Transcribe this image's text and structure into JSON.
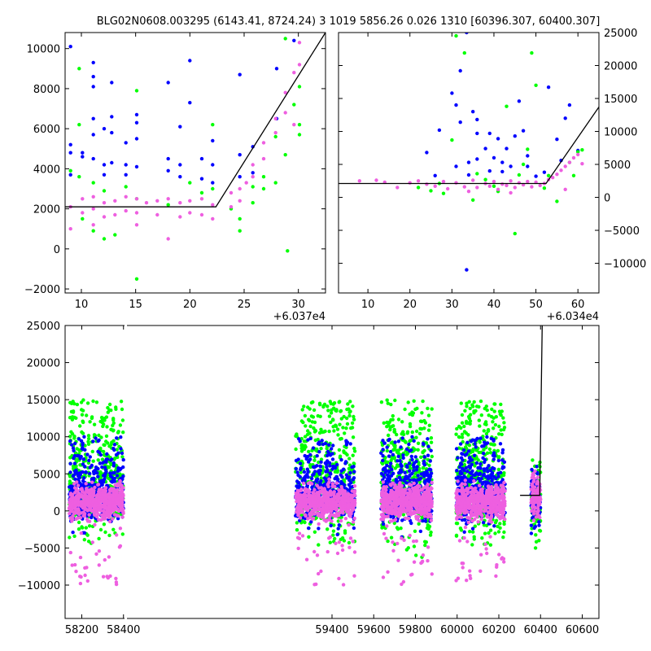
{
  "figure": {
    "title": "BLG02N0608.003295 (6143.41, 8724.24)  3 1019 5856.26 0.026 1310 [60396.307, 60400.307]"
  },
  "colors": {
    "green": "#00ff00",
    "blue": "#0000ff",
    "magenta": "#ee5fe0",
    "model": "#000000"
  },
  "chart_data": [
    {
      "type": "scatter",
      "xlim": [
        8.5,
        32.5
      ],
      "ylim": [
        -2200,
        10800
      ],
      "xticks": [
        10,
        15,
        20,
        25,
        30
      ],
      "yticks": [
        -2000,
        0,
        2000,
        4000,
        6000,
        8000,
        10000
      ],
      "offset_label": "+6.037e4",
      "grid": false,
      "model_line": [
        [
          8.5,
          2100
        ],
        [
          22.4,
          2100
        ],
        [
          32.5,
          10800
        ]
      ],
      "series": [
        {
          "color": "blue",
          "points": [
            [
              9.0,
              10100
            ],
            [
              9.0,
              5200
            ],
            [
              9.0,
              4800
            ],
            [
              9.0,
              3700
            ],
            [
              10.1,
              4800
            ],
            [
              10.1,
              4600
            ],
            [
              11.1,
              9300
            ],
            [
              11.1,
              8600
            ],
            [
              11.1,
              8100
            ],
            [
              11.1,
              6500
            ],
            [
              11.1,
              5700
            ],
            [
              11.1,
              4500
            ],
            [
              12.1,
              6000
            ],
            [
              12.1,
              4200
            ],
            [
              12.1,
              3700
            ],
            [
              12.8,
              8300
            ],
            [
              12.8,
              6600
            ],
            [
              12.8,
              5800
            ],
            [
              12.8,
              4300
            ],
            [
              14.1,
              5300
            ],
            [
              14.1,
              4200
            ],
            [
              14.1,
              3700
            ],
            [
              15.1,
              6700
            ],
            [
              15.1,
              6300
            ],
            [
              15.1,
              5500
            ],
            [
              15.1,
              4100
            ],
            [
              18.0,
              8300
            ],
            [
              18.0,
              4500
            ],
            [
              18.0,
              3900
            ],
            [
              19.1,
              6100
            ],
            [
              19.1,
              4200
            ],
            [
              19.1,
              3600
            ],
            [
              20.0,
              9400
            ],
            [
              20.0,
              7300
            ],
            [
              21.1,
              4500
            ],
            [
              21.1,
              3500
            ],
            [
              22.1,
              5400
            ],
            [
              22.1,
              4200
            ],
            [
              22.1,
              3300
            ],
            [
              24.6,
              8700
            ],
            [
              24.6,
              4700
            ],
            [
              24.6,
              3600
            ],
            [
              25.8,
              5100
            ],
            [
              25.8,
              3800
            ],
            [
              28.0,
              9000
            ],
            [
              28.0,
              6500
            ],
            [
              29.6,
              10400
            ]
          ]
        },
        {
          "color": "green",
          "points": [
            [
              9.0,
              3900
            ],
            [
              9.8,
              9000
            ],
            [
              9.8,
              6200
            ],
            [
              9.8,
              3600
            ],
            [
              10.1,
              1500
            ],
            [
              11.1,
              3300
            ],
            [
              11.1,
              900
            ],
            [
              12.1,
              2900
            ],
            [
              12.1,
              500
            ],
            [
              13.1,
              700
            ],
            [
              14.1,
              3100
            ],
            [
              15.1,
              2500
            ],
            [
              15.1,
              7900
            ],
            [
              15.1,
              -1500
            ],
            [
              18.0,
              2200
            ],
            [
              20.0,
              3300
            ],
            [
              21.1,
              2800
            ],
            [
              22.1,
              6200
            ],
            [
              22.1,
              3000
            ],
            [
              23.8,
              2000
            ],
            [
              24.6,
              1500
            ],
            [
              24.6,
              900
            ],
            [
              25.8,
              3100
            ],
            [
              25.8,
              2300
            ],
            [
              26.8,
              3600
            ],
            [
              26.8,
              3000
            ],
            [
              27.9,
              3300
            ],
            [
              27.9,
              5600
            ],
            [
              28.8,
              10500
            ],
            [
              28.8,
              4700
            ],
            [
              29.0,
              -100
            ],
            [
              29.6,
              10900
            ],
            [
              29.6,
              7200
            ],
            [
              30.1,
              6200
            ],
            [
              30.1,
              8100
            ],
            [
              30.1,
              5700
            ]
          ]
        },
        {
          "color": "magenta",
          "points": [
            [
              9.0,
              1000
            ],
            [
              9.0,
              2100
            ],
            [
              10.1,
              2500
            ],
            [
              10.1,
              1800
            ],
            [
              11.1,
              2600
            ],
            [
              11.1,
              2000
            ],
            [
              11.1,
              1200
            ],
            [
              12.1,
              2300
            ],
            [
              12.1,
              1600
            ],
            [
              13.1,
              2400
            ],
            [
              13.1,
              1700
            ],
            [
              14.1,
              2600
            ],
            [
              14.1,
              1900
            ],
            [
              15.1,
              2500
            ],
            [
              15.1,
              1800
            ],
            [
              15.1,
              1200
            ],
            [
              16.0,
              2300
            ],
            [
              17.0,
              2400
            ],
            [
              17.0,
              1700
            ],
            [
              18.0,
              2500
            ],
            [
              18.0,
              500
            ],
            [
              19.1,
              2300
            ],
            [
              19.1,
              1600
            ],
            [
              20.0,
              2400
            ],
            [
              20.0,
              1800
            ],
            [
              21.1,
              2500
            ],
            [
              21.1,
              1700
            ],
            [
              22.1,
              2200
            ],
            [
              22.1,
              1500
            ],
            [
              23.8,
              2800
            ],
            [
              23.8,
              2100
            ],
            [
              24.6,
              3000
            ],
            [
              24.6,
              2400
            ],
            [
              25.2,
              3300
            ],
            [
              25.8,
              4200
            ],
            [
              25.8,
              3600
            ],
            [
              26.8,
              5300
            ],
            [
              26.8,
              4500
            ],
            [
              27.9,
              6500
            ],
            [
              27.9,
              5800
            ],
            [
              28.8,
              7800
            ],
            [
              28.8,
              6800
            ],
            [
              29.6,
              8800
            ],
            [
              29.6,
              6200
            ],
            [
              30.1,
              9200
            ],
            [
              30.1,
              10300
            ]
          ]
        }
      ]
    },
    {
      "type": "scatter",
      "xlim": [
        3,
        65
      ],
      "ylim": [
        -14500,
        25000
      ],
      "xticks": [
        10,
        20,
        30,
        40,
        50,
        60
      ],
      "yticks": [
        -10000,
        -5000,
        0,
        5000,
        10000,
        15000,
        20000,
        25000
      ],
      "offset_label": "+6.034e4",
      "grid": false,
      "model_line": [
        [
          3,
          2100
        ],
        [
          52.4,
          2100
        ],
        [
          65,
          13700
        ]
      ],
      "series": [
        {
          "color": "blue",
          "points": [
            [
              24,
              6800
            ],
            [
              27,
              10200
            ],
            [
              30,
              15800
            ],
            [
              31,
              14000
            ],
            [
              32,
              19200
            ],
            [
              32,
              11400
            ],
            [
              33.5,
              25000
            ],
            [
              34,
              3400
            ],
            [
              34,
              5300
            ],
            [
              35,
              13000
            ],
            [
              36,
              9700
            ],
            [
              36,
              11800
            ],
            [
              38,
              7400
            ],
            [
              39,
              9700
            ],
            [
              40,
              6000
            ],
            [
              41,
              8900
            ],
            [
              42,
              5300
            ],
            [
              43,
              7400
            ],
            [
              45,
              9300
            ],
            [
              46,
              14600
            ],
            [
              47,
              10100
            ],
            [
              48,
              4700
            ],
            [
              48,
              6300
            ],
            [
              50,
              3200
            ],
            [
              53,
              16700
            ],
            [
              55,
              8800
            ],
            [
              57,
              12000
            ],
            [
              58,
              14000
            ],
            [
              60,
              7100
            ],
            [
              33.5,
              -11000
            ],
            [
              39,
              4000
            ],
            [
              44,
              4700
            ],
            [
              52,
              3800
            ],
            [
              56,
              5600
            ],
            [
              26,
              3300
            ],
            [
              31,
              4700
            ],
            [
              36,
              5800
            ],
            [
              42,
              3900
            ]
          ]
        },
        {
          "color": "green",
          "points": [
            [
              22,
              1500
            ],
            [
              25,
              1000
            ],
            [
              28,
              600
            ],
            [
              30,
              8700
            ],
            [
              31,
              24500
            ],
            [
              33,
              21900
            ],
            [
              35,
              -400
            ],
            [
              36,
              3600
            ],
            [
              38,
              2700
            ],
            [
              40,
              1700
            ],
            [
              43,
              13800
            ],
            [
              45,
              -5500
            ],
            [
              46,
              3400
            ],
            [
              47,
              5000
            ],
            [
              48,
              7300
            ],
            [
              49,
              21900
            ],
            [
              50,
              17000
            ],
            [
              52,
              1400
            ],
            [
              53,
              3300
            ],
            [
              55,
              -600
            ],
            [
              58,
              5300
            ],
            [
              59,
              3300
            ],
            [
              60,
              6900
            ],
            [
              61,
              7200
            ],
            [
              27,
              2100
            ],
            [
              41,
              900
            ]
          ]
        },
        {
          "color": "magenta",
          "points": [
            [
              8,
              2500
            ],
            [
              12,
              2600
            ],
            [
              14,
              2300
            ],
            [
              17,
              1500
            ],
            [
              20,
              2200
            ],
            [
              22,
              2500
            ],
            [
              24,
              2000
            ],
            [
              26,
              1700
            ],
            [
              28,
              2400
            ],
            [
              29,
              1300
            ],
            [
              31,
              2200
            ],
            [
              33,
              1600
            ],
            [
              35,
              2600
            ],
            [
              36,
              1500
            ],
            [
              38,
              2100
            ],
            [
              39,
              1700
            ],
            [
              40,
              2400
            ],
            [
              41,
              1200
            ],
            [
              42,
              2000
            ],
            [
              43,
              1800
            ],
            [
              44,
              2500
            ],
            [
              45,
              1500
            ],
            [
              46,
              2200
            ],
            [
              47,
              1900
            ],
            [
              48,
              2400
            ],
            [
              49,
              1600
            ],
            [
              50,
              2300
            ],
            [
              51,
              1800
            ],
            [
              52,
              2100
            ],
            [
              53,
              2700
            ],
            [
              54,
              3000
            ],
            [
              55,
              3500
            ],
            [
              56,
              4100
            ],
            [
              57,
              4700
            ],
            [
              58,
              5300
            ],
            [
              59,
              6000
            ],
            [
              60,
              6500
            ],
            [
              61,
              5100
            ],
            [
              34,
              900
            ],
            [
              44,
              700
            ],
            [
              57,
              1200
            ]
          ]
        }
      ]
    },
    {
      "type": "scatter",
      "xlim": [
        58120,
        60680
      ],
      "ylim": [
        -14500,
        25000
      ],
      "xticks": [
        58200,
        58400,
        59400,
        59600,
        59800,
        60000,
        60200,
        60400,
        60600
      ],
      "yticks": [
        -10000,
        -5000,
        0,
        5000,
        10000,
        15000,
        20000,
        25000
      ],
      "grid": false,
      "axis_break": [
        [
          58405,
          58420
        ],
        [
          58425,
          59225
        ]
      ],
      "model_line": [
        [
          60302,
          2100
        ],
        [
          60396.307,
          2100
        ],
        [
          60408,
          25000
        ]
      ],
      "seasons": [
        {
          "range": [
            58140,
            58400
          ]
        },
        {
          "range": [
            59225,
            59510
          ]
        },
        {
          "range": [
            59635,
            59880
          ]
        },
        {
          "range": [
            59995,
            60230
          ]
        },
        {
          "range": [
            60355,
            60400
          ]
        }
      ]
    }
  ]
}
